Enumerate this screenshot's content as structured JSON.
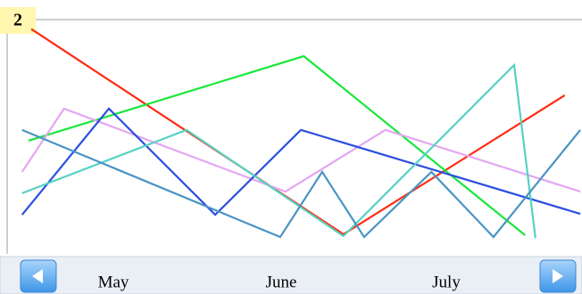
{
  "badge": "2",
  "chart_data": {
    "type": "line",
    "categories": [
      "May",
      "June",
      "July"
    ],
    "xlim": [
      0,
      100
    ],
    "ylim": [
      0,
      100
    ],
    "series": [
      {
        "color": "#ff2a10",
        "x": [
          4.2,
          58.5,
          97
        ],
        "values": [
          96,
          8.4,
          67.7
        ]
      },
      {
        "color": "#18e83a",
        "x": [
          3.7,
          51.6,
          90.1
        ],
        "values": [
          48.3,
          84.4,
          8.0
        ]
      },
      {
        "color": "#e4a6f2",
        "x": [
          2.6,
          9.9,
          48.4,
          65.8,
          99.7
        ],
        "values": [
          35,
          62,
          26.6,
          52.9,
          26.6
        ]
      },
      {
        "color": "#2a4fe0",
        "x": [
          2.6,
          17.7,
          36.2,
          51.1,
          99.7
        ],
        "values": [
          16.7,
          62,
          16.7,
          52.9,
          17.1
        ]
      },
      {
        "color": "#55d2c4",
        "x": [
          2.6,
          31.2,
          58.5,
          88.2,
          91.9
        ],
        "values": [
          25.9,
          52.9,
          7.6,
          80.6,
          6.8
        ]
      },
      {
        "color": "#4a94c4",
        "x": [
          2.6,
          47.5,
          54.8,
          62.1,
          73.8,
          84.6,
          99.7
        ],
        "values": [
          52.9,
          7.2,
          35,
          7.2,
          35,
          7.2,
          52.9
        ]
      }
    ]
  }
}
